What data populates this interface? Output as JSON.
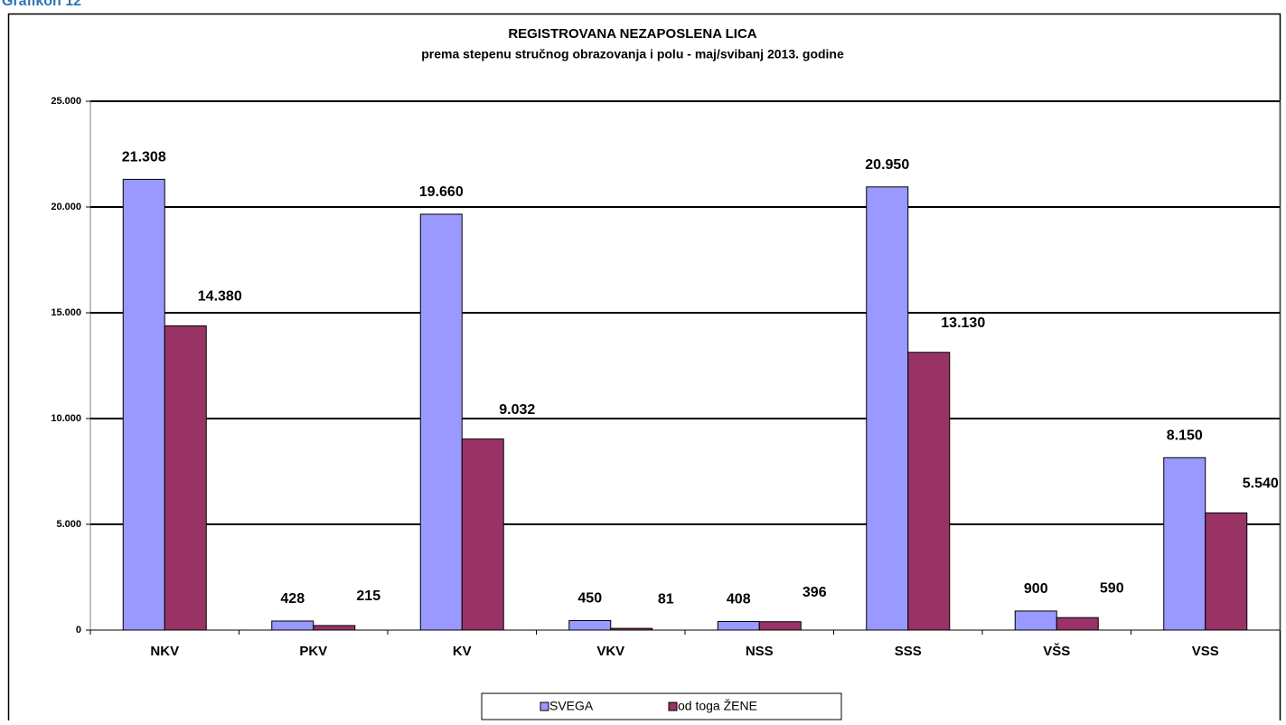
{
  "heading": "Grafikon 12",
  "chart_data": {
    "type": "bar",
    "title": "REGISTROVANA NEZAPOSLENA LICA",
    "subtitle": "prema stepenu stručnog obrazovanja i polu - maj/svibanj  2013. godine",
    "categories": [
      "NKV",
      "PKV",
      "KV",
      "VKV",
      "NSS",
      "SSS",
      "VŠS",
      "VSS"
    ],
    "series": [
      {
        "name": "SVEGA",
        "color": "#9999ff",
        "values": [
          21308,
          428,
          19660,
          450,
          408,
          20950,
          900,
          8150
        ],
        "value_labels": [
          "21.308",
          "428",
          "19.660",
          "450",
          "408",
          "20.950",
          "900",
          "8.150"
        ]
      },
      {
        "name": "od toga ŽENE",
        "color": "#993366",
        "values": [
          14380,
          215,
          9032,
          81,
          396,
          13130,
          590,
          5540
        ],
        "value_labels": [
          "14.380",
          "215",
          "9.032",
          "81",
          "396",
          "13.130",
          "590",
          "5.540"
        ]
      }
    ],
    "ylim": [
      0,
      25000
    ],
    "yticks": [
      0,
      {
        "value": 5000,
        "label": "5.000"
      },
      {
        "value": 10000,
        "label": "10.000"
      },
      {
        "value": 15000,
        "label": "15.000"
      },
      {
        "value": 20000,
        "label": "20.000"
      },
      {
        "value": 25000,
        "label": "25.000"
      }
    ],
    "grid": true,
    "legend": "bottom"
  }
}
